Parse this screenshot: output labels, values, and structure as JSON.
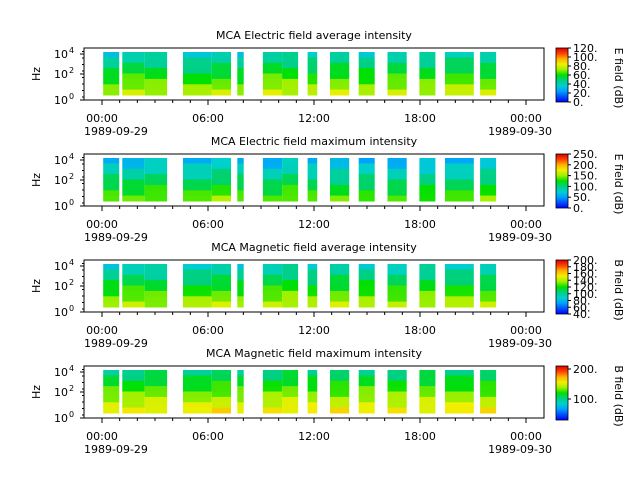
{
  "chart_data": [
    {
      "type": "heatmap",
      "title": "MCA  Electric field average intensity",
      "ylabel": "Hz",
      "y_scale": "log",
      "y_tick_labels": [
        "10^0",
        "10^2",
        "10^4"
      ],
      "x_tick_labels": [
        "00:00",
        "06:00",
        "12:00",
        "18:00",
        "00:00"
      ],
      "x_date_labels": [
        "1989-09-29",
        "1989-09-30"
      ],
      "colorbar": {
        "label": "E field (dB)",
        "min": 0,
        "max": 120,
        "ticks": [
          "120.",
          "100.",
          "80.",
          "60.",
          "40.",
          "20.",
          "0."
        ],
        "colormap": "nipy_spectral"
      },
      "segments": [
        {
          "start": "01:00",
          "end": "01:50",
          "level": 55
        },
        {
          "start": "02:00",
          "end": "03:10",
          "level": 60
        },
        {
          "start": "03:10",
          "end": "04:20",
          "level": 58
        },
        {
          "start": "05:10",
          "end": "06:40",
          "level": 55
        },
        {
          "start": "06:40",
          "end": "07:40",
          "level": 58
        },
        {
          "start": "08:00",
          "end": "08:20",
          "level": 55
        },
        {
          "start": "09:20",
          "end": "10:20",
          "level": 62
        },
        {
          "start": "10:20",
          "end": "11:10",
          "level": 60
        },
        {
          "start": "11:40",
          "end": "12:10",
          "level": 58
        },
        {
          "start": "12:50",
          "end": "13:50",
          "level": 60
        },
        {
          "start": "14:20",
          "end": "15:10",
          "level": 58
        },
        {
          "start": "15:50",
          "end": "16:50",
          "level": 60
        },
        {
          "start": "17:30",
          "end": "18:20",
          "level": 58
        },
        {
          "start": "18:50",
          "end": "20:20",
          "level": 60
        },
        {
          "start": "20:40",
          "end": "21:30",
          "level": 58
        }
      ]
    },
    {
      "type": "heatmap",
      "title": "MCA  Electric field maximum intensity",
      "ylabel": "Hz",
      "y_scale": "log",
      "y_tick_labels": [
        "10^0",
        "10^2",
        "10^4"
      ],
      "x_tick_labels": [
        "00:00",
        "06:00",
        "12:00",
        "18:00",
        "00:00"
      ],
      "x_date_labels": [
        "1989-09-29",
        "1989-09-30"
      ],
      "colorbar": {
        "label": "E field (dB)",
        "min": 0,
        "max": 250,
        "ticks": [
          "250.",
          "200.",
          "150.",
          "100.",
          "50.",
          "0."
        ],
        "colormap": "nipy_spectral"
      },
      "segments": [
        {
          "start": "01:00",
          "end": "01:50",
          "level": 105
        },
        {
          "start": "02:00",
          "end": "03:10",
          "level": 100
        },
        {
          "start": "03:10",
          "end": "04:20",
          "level": 108
        },
        {
          "start": "05:10",
          "end": "06:40",
          "level": 100
        },
        {
          "start": "06:40",
          "end": "07:40",
          "level": 110
        },
        {
          "start": "08:00",
          "end": "08:20",
          "level": 105
        },
        {
          "start": "09:20",
          "end": "10:20",
          "level": 95
        },
        {
          "start": "10:20",
          "end": "11:10",
          "level": 110
        },
        {
          "start": "11:40",
          "end": "12:10",
          "level": 100
        },
        {
          "start": "12:50",
          "end": "13:50",
          "level": 98
        },
        {
          "start": "14:20",
          "end": "15:10",
          "level": 100
        },
        {
          "start": "15:50",
          "end": "16:50",
          "level": 95
        },
        {
          "start": "17:30",
          "end": "18:20",
          "level": 100
        },
        {
          "start": "18:50",
          "end": "20:20",
          "level": 98
        },
        {
          "start": "20:40",
          "end": "21:30",
          "level": 105
        }
      ]
    },
    {
      "type": "heatmap",
      "title": "MCA  Magnetic field average intensity",
      "ylabel": "Hz",
      "y_scale": "log",
      "y_tick_labels": [
        "10^0",
        "10^2",
        "10^4"
      ],
      "x_tick_labels": [
        "00:00",
        "06:00",
        "12:00",
        "18:00",
        "00:00"
      ],
      "x_date_labels": [
        "1989-09-29",
        "1989-09-30"
      ],
      "colorbar": {
        "label": "B field (dB)",
        "min": 40,
        "max": 200,
        "ticks": [
          "200.",
          "180.",
          "160.",
          "140.",
          "120.",
          "100.",
          "80.",
          "60.",
          "40."
        ],
        "colormap": "nipy_spectral"
      },
      "segments": [
        {
          "start": "01:00",
          "end": "01:50",
          "level": 115
        },
        {
          "start": "02:00",
          "end": "03:10",
          "level": 118
        },
        {
          "start": "03:10",
          "end": "04:20",
          "level": 115
        },
        {
          "start": "05:10",
          "end": "06:40",
          "level": 115
        },
        {
          "start": "06:40",
          "end": "07:40",
          "level": 118
        },
        {
          "start": "08:00",
          "end": "08:20",
          "level": 115
        },
        {
          "start": "09:20",
          "end": "10:20",
          "level": 118
        },
        {
          "start": "10:20",
          "end": "11:10",
          "level": 120
        },
        {
          "start": "11:40",
          "end": "12:10",
          "level": 115
        },
        {
          "start": "12:50",
          "end": "13:50",
          "level": 118
        },
        {
          "start": "14:20",
          "end": "15:10",
          "level": 118
        },
        {
          "start": "15:50",
          "end": "16:50",
          "level": 116
        },
        {
          "start": "17:30",
          "end": "18:20",
          "level": 118
        },
        {
          "start": "18:50",
          "end": "20:20",
          "level": 116
        },
        {
          "start": "20:40",
          "end": "21:30",
          "level": 115
        }
      ]
    },
    {
      "type": "heatmap",
      "title": "MCA  Magnetic field maximum intensity",
      "ylabel": "Hz",
      "y_scale": "log",
      "y_tick_labels": [
        "10^0",
        "10^2",
        "10^4"
      ],
      "x_tick_labels": [
        "00:00",
        "06:00",
        "12:00",
        "18:00",
        "00:00"
      ],
      "x_date_labels": [
        "1989-09-29",
        "1989-09-30"
      ],
      "colorbar": {
        "label": "B field (dB)",
        "min": 30,
        "max": 210,
        "ticks": [
          "200.",
          "100."
        ],
        "colormap": "nipy_spectral"
      },
      "segments": [
        {
          "start": "01:00",
          "end": "01:50",
          "level": 130
        },
        {
          "start": "02:00",
          "end": "03:10",
          "level": 128
        },
        {
          "start": "03:10",
          "end": "04:20",
          "level": 132
        },
        {
          "start": "05:10",
          "end": "06:40",
          "level": 128
        },
        {
          "start": "06:40",
          "end": "07:40",
          "level": 132
        },
        {
          "start": "08:00",
          "end": "08:20",
          "level": 130
        },
        {
          "start": "09:20",
          "end": "10:20",
          "level": 130
        },
        {
          "start": "10:20",
          "end": "11:10",
          "level": 134
        },
        {
          "start": "11:40",
          "end": "12:10",
          "level": 130
        },
        {
          "start": "12:50",
          "end": "13:50",
          "level": 130
        },
        {
          "start": "14:20",
          "end": "15:10",
          "level": 132
        },
        {
          "start": "15:50",
          "end": "16:50",
          "level": 130
        },
        {
          "start": "17:30",
          "end": "18:20",
          "level": 132
        },
        {
          "start": "18:50",
          "end": "20:20",
          "level": 130
        },
        {
          "start": "20:40",
          "end": "21:30",
          "level": 130
        }
      ]
    }
  ]
}
